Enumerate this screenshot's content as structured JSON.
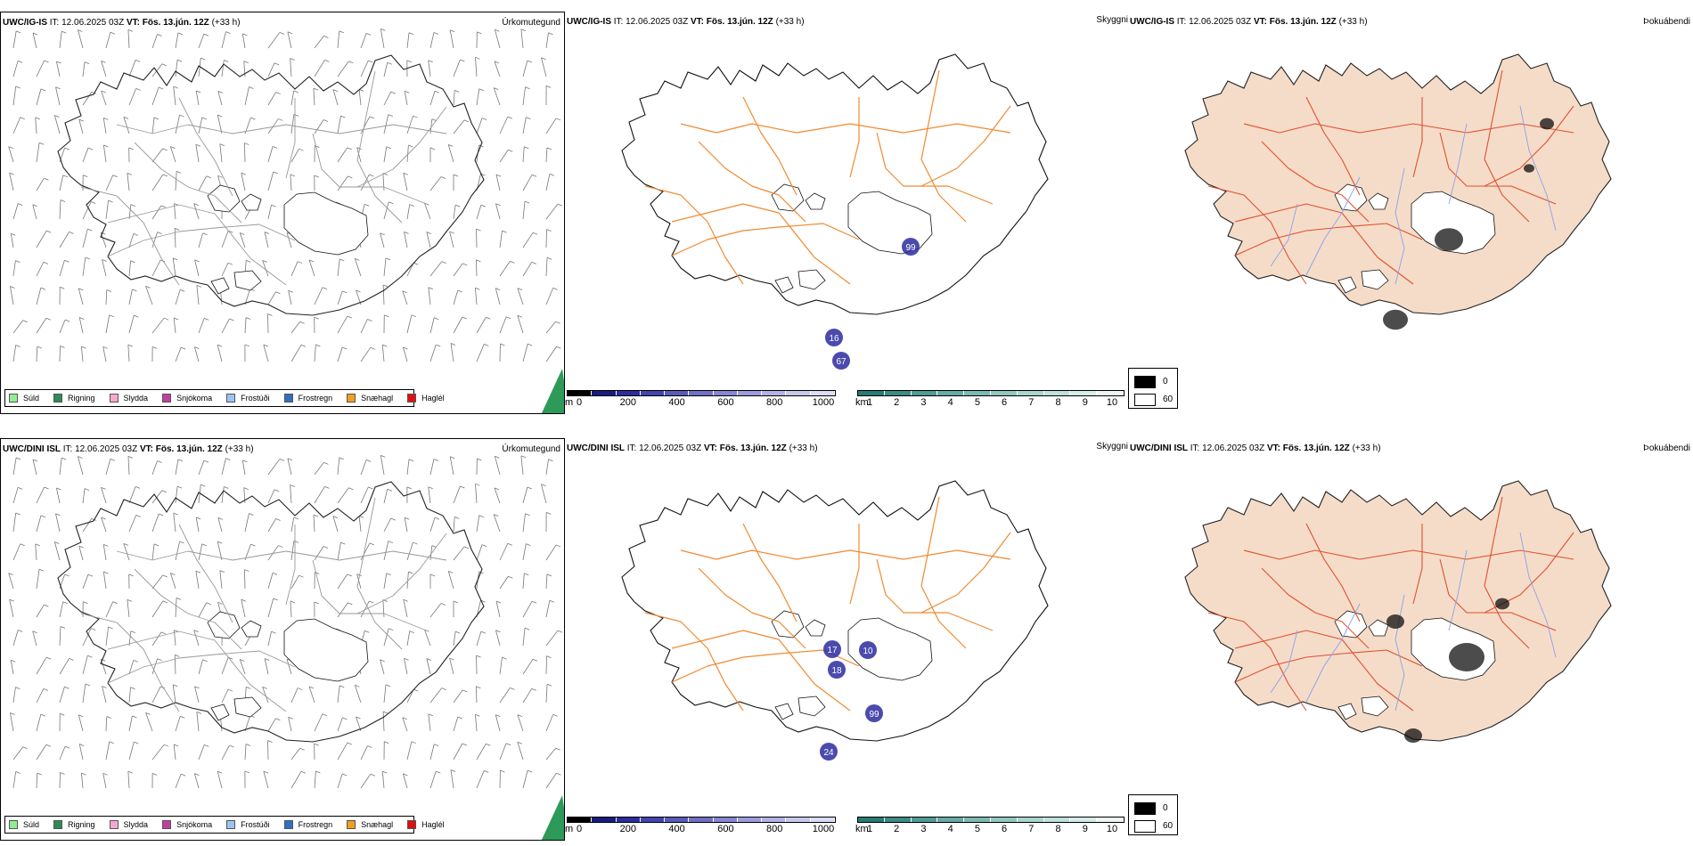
{
  "rows": [
    {
      "model": "UWC/IG-IS",
      "it_label": "IT:",
      "it_value": "12.06.2025 03Z",
      "vt_label": "VT:",
      "vt_value": "Fös. 13.jún. 12Z",
      "lead": "(+33 h)",
      "title_precip": "Úrkomutegund",
      "title_vis": "Skyggni",
      "title_fog": "Þokuábendi"
    },
    {
      "model": "UWC/DINI ISL",
      "it_label": "IT:",
      "it_value": "12.06.2025 03Z",
      "vt_label": "VT:",
      "vt_value": "Fös. 13.jún. 12Z",
      "lead": "(+33 h)",
      "title_precip": "Úrkomutegund",
      "title_vis": "Skyggni",
      "title_fog": "Þokuábendi"
    }
  ],
  "precip_legend": [
    {
      "label": "Súld",
      "color": "#90ee90"
    },
    {
      "label": "Rigning",
      "color": "#2e8b57"
    },
    {
      "label": "Slydda",
      "color": "#f4a8d2"
    },
    {
      "label": "Snjókoma",
      "color": "#c040a0"
    },
    {
      "label": "Frostúði",
      "color": "#9cc4f0"
    },
    {
      "label": "Frostregn",
      "color": "#3070c0"
    },
    {
      "label": "Snæhagl",
      "color": "#f0a020"
    },
    {
      "label": "Haglél",
      "color": "#e01010"
    }
  ],
  "ceiling_colorbar": {
    "unit": "m",
    "ticks": [
      "0",
      "200",
      "400",
      "600",
      "800",
      "1000"
    ],
    "colors": [
      "#000000",
      "#1a1a80",
      "#2c2ca0",
      "#4444b0",
      "#5a5abc",
      "#7070c8",
      "#8686d2",
      "#9c9cdc",
      "#b2b2e4",
      "#c8c8ec",
      "#dcdcf4"
    ]
  },
  "visibility_colorbar": {
    "unit": "km",
    "ticks": [
      "1",
      "2",
      "3",
      "4",
      "5",
      "6",
      "7",
      "8",
      "9",
      "10"
    ],
    "colors": [
      "#2a7a74",
      "#3e8a84",
      "#529a94",
      "#68aaa4",
      "#7eb8b2",
      "#94c6c0",
      "#aad4ce",
      "#c0e0dc",
      "#d6ece8",
      "#ecf6f4"
    ]
  },
  "fog_legend": [
    {
      "label": "0",
      "color": "#000000"
    },
    {
      "label": "60",
      "color": "#ffffff"
    }
  ],
  "ceiling_labels_row1": [
    "99",
    "67",
    "16"
  ],
  "ceiling_labels_row2": [
    "17",
    "10",
    "18",
    "99",
    "24"
  ]
}
